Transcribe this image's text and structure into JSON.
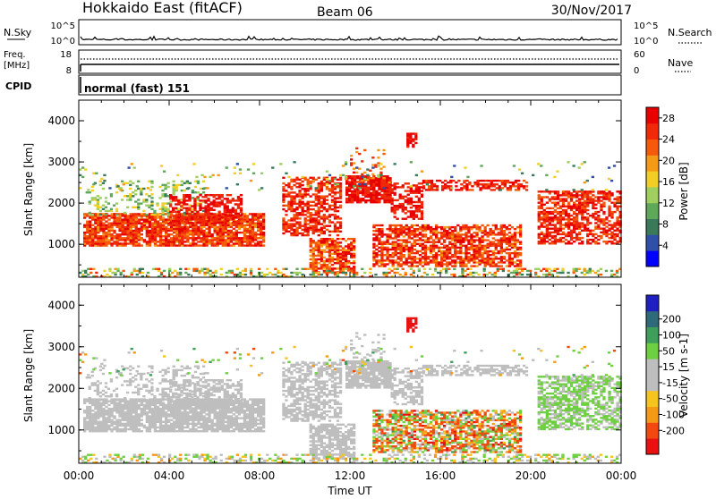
{
  "header": {
    "station": "Hokkaido East (fitACF)",
    "beam": "Beam 06",
    "date": "30/Nov/2017"
  },
  "status_panels": {
    "nsky_label": "N.Sky",
    "nsky_ticks": [
      "10^5",
      "10^0"
    ],
    "freq_label": "Freq.",
    "freq_unit": "[MHz]",
    "freq_ticks": [
      "18",
      "8"
    ],
    "cpid_label": "CPID",
    "cpid_value": "normal (fast) 151",
    "right_ticks_top": [
      "10^5",
      "10^0"
    ],
    "right_ticks_bottom": [
      "60",
      "0"
    ],
    "nsearch_label": "N.Search",
    "nave_label": "Nave"
  },
  "colors": {
    "power_scale": [
      "#0000ff",
      "#2f4fa8",
      "#3a7a5a",
      "#5fa85a",
      "#9ecf5f",
      "#f2cf28",
      "#f59a18",
      "#f55a0a",
      "#ef2a08",
      "#e80000"
    ],
    "velocity_scale": [
      "#e81010",
      "#f04a10",
      "#f59a18",
      "#f5c420",
      "#bebebe",
      "#bebebe",
      "#6ed040",
      "#3f9e5a",
      "#2f6a7a",
      "#2020c0"
    ]
  },
  "chart_data": [
    {
      "type": "heatmap",
      "panel": "power",
      "xlabel": "Time UT",
      "ylabel": "Slant Range [km]",
      "xlim": [
        0,
        24
      ],
      "ylim": [
        200,
        4500
      ],
      "x_tick_labels": [
        "00:00",
        "04:00",
        "08:00",
        "12:00",
        "16:00",
        "20:00",
        "00:00"
      ],
      "y_tick_labels": [
        "1000",
        "2000",
        "3000",
        "4000"
      ],
      "colorbar": {
        "label": "Power [dB]",
        "ticks": [
          "4",
          "8",
          "12",
          "16",
          "20",
          "24",
          "28"
        ],
        "range": [
          0,
          30
        ]
      }
    },
    {
      "type": "heatmap",
      "panel": "velocity",
      "xlabel": "Time UT",
      "ylabel": "Slant Range [km]",
      "xlim": [
        0,
        24
      ],
      "ylim": [
        200,
        4500
      ],
      "x_tick_labels": [
        "00:00",
        "04:00",
        "08:00",
        "12:00",
        "16:00",
        "20:00",
        "00:00"
      ],
      "y_tick_labels": [
        "1000",
        "2000",
        "3000",
        "4000"
      ],
      "colorbar": {
        "label": "Velocity [m s-1]",
        "ticks": [
          "200",
          "100",
          "50",
          "15",
          "-15",
          "-50",
          "-100",
          "-200"
        ]
      }
    }
  ]
}
